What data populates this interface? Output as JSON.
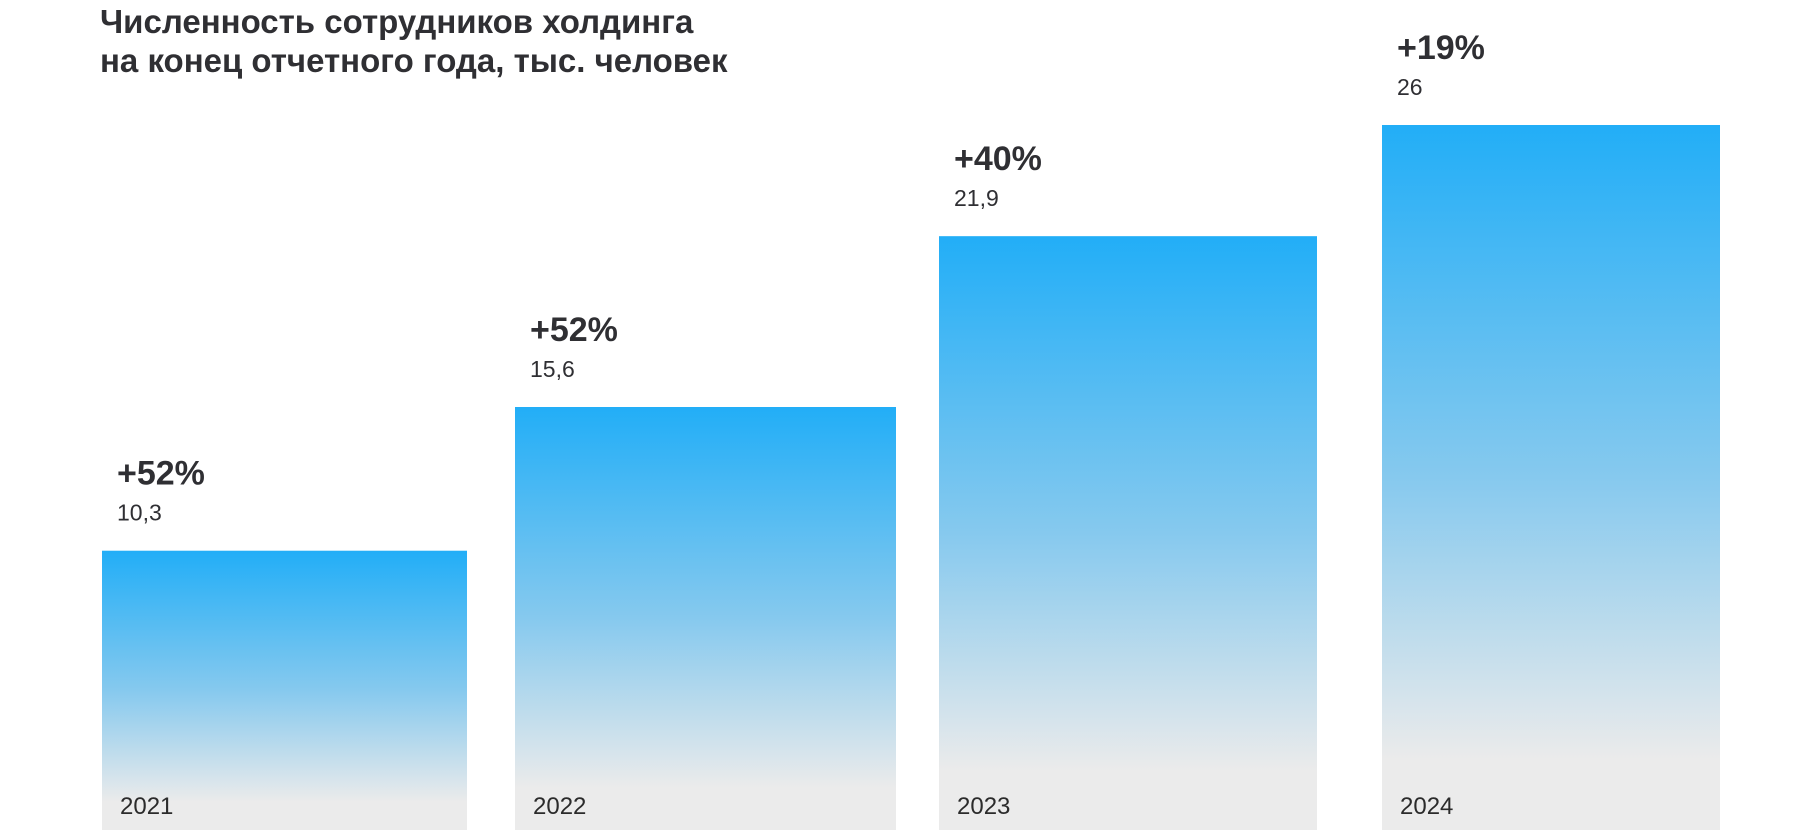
{
  "chart_data": {
    "type": "bar",
    "title": [
      "Численность сотрудников холдинга",
      "на конец отчетного года, тыс. человек"
    ],
    "categories": [
      "2021",
      "2022",
      "2023",
      "2024"
    ],
    "values": [
      10.3,
      15.6,
      21.9,
      26
    ],
    "value_labels": [
      "10,3",
      "15,6",
      "21,9",
      "26"
    ],
    "growth_labels": [
      "+52%",
      "+52%",
      "+40%",
      "+19%"
    ],
    "xlabel": "",
    "ylabel": "",
    "ylim": [
      0,
      26
    ],
    "grid": false,
    "legend": "none",
    "colors": {
      "bar_top": "#22aef7",
      "bar_mid": "#86c9ee",
      "bar_bottom": "#ebebeb",
      "text": "#2f2f33"
    }
  }
}
